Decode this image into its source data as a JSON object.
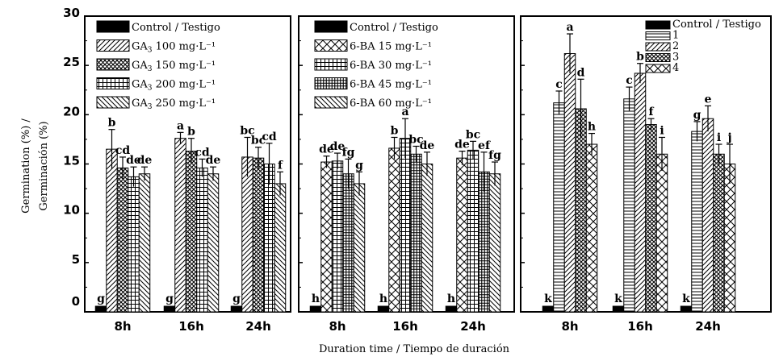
{
  "figure": {
    "ylabel_line1": "Germination (%) /",
    "ylabel_line2": "Germinación  (%)",
    "xlabel": "Duration time / Tiempo de duración",
    "ylim": [
      0,
      30
    ],
    "yticks": [
      "0",
      "5",
      "10",
      "15",
      "20",
      "25",
      "30"
    ]
  },
  "chart_data": [
    {
      "type": "bar",
      "panel": "GA3",
      "categories": [
        "8h",
        "16h",
        "24h"
      ],
      "ylabel": "Germination (%) / Germinación (%)",
      "xlabel": "Duration time / Tiempo de duración",
      "ylim": [
        0,
        30
      ],
      "series": [
        {
          "name": "Control / Testigo",
          "sub": "",
          "suffix": "",
          "pattern": "solid",
          "values": [
            0,
            0,
            0
          ],
          "errors": [
            0,
            0,
            0
          ],
          "letters": [
            "g",
            "g",
            "g"
          ]
        },
        {
          "name": "GA",
          "sub": "3",
          "suffix": " 100 mg·L⁻¹",
          "pattern": "diag-right",
          "values": [
            16.5,
            17.6,
            15.7
          ],
          "errors": [
            2.0,
            0.6,
            2.0
          ],
          "letters": [
            "b",
            "a",
            "bc"
          ]
        },
        {
          "name": "GA",
          "sub": "3",
          "suffix": " 150 mg·L⁻¹",
          "pattern": "crosshatch",
          "values": [
            14.6,
            16.3,
            15.6
          ],
          "errors": [
            1.1,
            1.3,
            1.1
          ],
          "letters": [
            "cd",
            "b",
            "bc"
          ]
        },
        {
          "name": "GA",
          "sub": "3",
          "suffix": " 200 mg·L⁻¹",
          "pattern": "grid",
          "values": [
            13.7,
            14.6,
            15.0
          ],
          "errors": [
            1.0,
            0.9,
            2.1
          ],
          "letters": [
            "de",
            "cd",
            "cd"
          ]
        },
        {
          "name": "GA",
          "sub": "3",
          "suffix": " 250 mg·L⁻¹",
          "pattern": "diag-left",
          "values": [
            14.0,
            14.0,
            13.0
          ],
          "errors": [
            0.7,
            0.7,
            1.2
          ],
          "letters": [
            "de",
            "de",
            "f"
          ]
        }
      ]
    },
    {
      "type": "bar",
      "panel": "6-BA",
      "categories": [
        "8h",
        "16h",
        "24h"
      ],
      "ylim": [
        0,
        30
      ],
      "series": [
        {
          "name": "Control / Testigo",
          "sub": "",
          "suffix": "",
          "pattern": "solid",
          "values": [
            0,
            0,
            0
          ],
          "errors": [
            0,
            0,
            0
          ],
          "letters": [
            "h",
            "h",
            "h"
          ]
        },
        {
          "name": "6-BA 15 mg·L⁻¹",
          "sub": "",
          "suffix": "",
          "pattern": "diamond",
          "values": [
            15.2,
            16.6,
            15.6
          ],
          "errors": [
            0.6,
            1.1,
            0.7
          ],
          "letters": [
            "de",
            "b",
            "de"
          ]
        },
        {
          "name": "6-BA 30 mg·L⁻¹",
          "sub": "",
          "suffix": "",
          "pattern": "grid",
          "values": [
            15.3,
            17.6,
            16.4
          ],
          "errors": [
            0.8,
            2.0,
            0.9
          ],
          "letters": [
            "de",
            "a",
            "bc"
          ]
        },
        {
          "name": "6-BA 45 mg·L⁻¹",
          "sub": "",
          "suffix": "",
          "pattern": "grid-dense",
          "values": [
            14.0,
            16.0,
            14.2
          ],
          "errors": [
            1.5,
            0.8,
            2.0
          ],
          "letters": [
            "fg",
            "bc",
            "ef"
          ]
        },
        {
          "name": "6-BA 60 mg·L⁻¹",
          "sub": "",
          "suffix": "",
          "pattern": "diag-left",
          "values": [
            13.0,
            15.0,
            14.0
          ],
          "errors": [
            1.2,
            1.2,
            1.2
          ],
          "letters": [
            "g",
            "de",
            "fg"
          ]
        }
      ]
    },
    {
      "type": "bar",
      "panel": "combined",
      "categories": [
        "8h",
        "16h",
        "24h"
      ],
      "ylim": [
        0,
        30
      ],
      "series": [
        {
          "name": "Control / Testigo",
          "sub": "",
          "suffix": "",
          "pattern": "solid",
          "values": [
            0,
            0,
            0
          ],
          "errors": [
            0,
            0,
            0
          ],
          "letters": [
            "k",
            "k",
            "k"
          ]
        },
        {
          "name": "1",
          "sub": "",
          "suffix": "",
          "pattern": "horizontal",
          "values": [
            21.2,
            21.6,
            18.3
          ],
          "errors": [
            1.2,
            1.2,
            1.0
          ],
          "letters": [
            "c",
            "c",
            "g"
          ]
        },
        {
          "name": "2",
          "sub": "",
          "suffix": "",
          "pattern": "diag-right",
          "values": [
            26.2,
            24.2,
            19.6
          ],
          "errors": [
            2.0,
            1.0,
            1.3
          ],
          "letters": [
            "a",
            "b",
            "e"
          ]
        },
        {
          "name": "3",
          "sub": "",
          "suffix": "",
          "pattern": "crosshatch",
          "values": [
            20.6,
            19.0,
            16.0
          ],
          "errors": [
            3.0,
            0.6,
            1.0
          ],
          "letters": [
            "d",
            "f",
            "i"
          ]
        },
        {
          "name": "4",
          "sub": "",
          "suffix": "",
          "pattern": "diamond",
          "values": [
            17.0,
            16.0,
            15.0
          ],
          "errors": [
            1.1,
            1.7,
            2.0
          ],
          "letters": [
            "h",
            "i",
            "j"
          ]
        }
      ]
    }
  ]
}
